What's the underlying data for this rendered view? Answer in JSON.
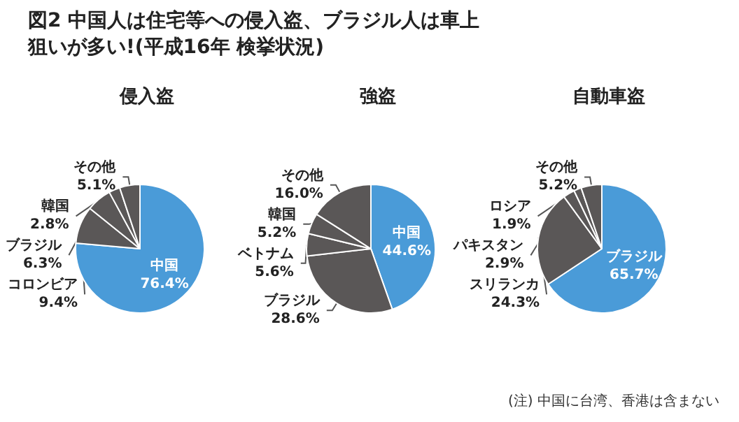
{
  "chart_data": [
    {
      "type": "pie",
      "title": "侵入盗",
      "categories": [
        "中国",
        "コロンビア",
        "ブラジル",
        "韓国",
        "その他"
      ],
      "values": [
        76.4,
        9.4,
        6.3,
        2.8,
        5.1
      ],
      "colors": [
        "#4a9bd8",
        "#5a5757",
        "#5a5757",
        "#5a5757",
        "#5a5757"
      ],
      "value_labels": [
        "76.4%",
        "9.4%",
        "6.3%",
        "2.8%",
        "5.1%"
      ],
      "legend": false,
      "annotations": [
        "図2 中国人は住宅等への侵入盗、ブラジル人は車上狙いが多い!(平成16年 検挙状況)"
      ]
    },
    {
      "type": "pie",
      "title": "強盗",
      "categories": [
        "中国",
        "ブラジル",
        "ベトナム",
        "韓国",
        "その他"
      ],
      "values": [
        44.6,
        28.6,
        5.6,
        5.2,
        16.0
      ],
      "colors": [
        "#4a9bd8",
        "#5a5757",
        "#5a5757",
        "#5a5757",
        "#5a5757"
      ],
      "value_labels": [
        "44.6%",
        "28.6%",
        "5.6%",
        "5.2%",
        "16.0%"
      ],
      "legend": false
    },
    {
      "type": "pie",
      "title": "自動車盗",
      "categories": [
        "ブラジル",
        "スリランカ",
        "パキスタン",
        "ロシア",
        "その他"
      ],
      "values": [
        65.7,
        24.3,
        2.9,
        1.9,
        5.2
      ],
      "colors": [
        "#4a9bd8",
        "#5a5757",
        "#5a5757",
        "#5a5757",
        "#5a5757"
      ],
      "value_labels": [
        "65.7%",
        "24.3%",
        "2.9%",
        "1.9%",
        "5.2%"
      ],
      "legend": false,
      "annotations": [
        "(注) 中国に台湾、香港は含まない"
      ]
    }
  ]
}
